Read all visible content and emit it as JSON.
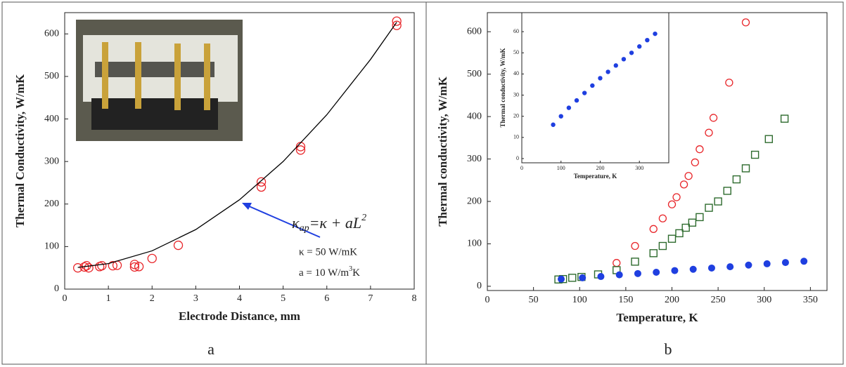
{
  "chart_data": [
    {
      "type": "scatter",
      "panel_label": "a",
      "x_label": "Electrode Distance, mm",
      "y_label": "Thermal Conductivity, W/mK",
      "xlim": [
        0,
        8
      ],
      "ylim": [
        0,
        650
      ],
      "xticks": [
        0,
        1,
        2,
        3,
        4,
        5,
        6,
        7,
        8
      ],
      "yticks": [
        0,
        100,
        200,
        300,
        400,
        500,
        600
      ],
      "annotations": {
        "formula": {
          "main": "κ",
          "sub": "ap",
          "rest": "=κ + aL",
          "sup": "2"
        },
        "kappa": "κ = 50 W/mK",
        "a": {
          "main": "a = 10 W/m",
          "sup": "3",
          "rest": "K"
        }
      },
      "series": [
        {
          "marker": "circle-open",
          "color": "#e8262a",
          "x": [
            0.3,
            0.45,
            0.5,
            0.55,
            0.8,
            0.85,
            1.1,
            1.2,
            1.6,
            1.6,
            1.7,
            2.0,
            2.6,
            4.5,
            4.5,
            5.4,
            5.4,
            7.6,
            7.6
          ],
          "values": [
            50,
            52,
            55,
            50,
            53,
            55,
            55,
            56,
            52,
            58,
            53,
            72,
            103,
            240,
            252,
            327,
            335,
            620,
            630
          ]
        },
        {
          "marker": "line",
          "color": "#000000",
          "x": [
            0.3,
            1,
            2,
            3,
            4,
            5,
            6,
            7,
            7.6
          ],
          "values": [
            50.9,
            60,
            90,
            140,
            210,
            300,
            410,
            540,
            627.6
          ]
        }
      ]
    },
    {
      "type": "scatter",
      "panel_label": "b",
      "x_label": "Temperature, K",
      "y_label": "Thermal conductivity, W/mK",
      "xlim": [
        0,
        368
      ],
      "ylim": [
        -10,
        645
      ],
      "xticks": [
        0,
        50,
        100,
        150,
        200,
        250,
        300,
        350
      ],
      "yticks": [
        0,
        100,
        200,
        300,
        400,
        500,
        600
      ],
      "series": [
        {
          "marker": "circle-open",
          "color": "#e8262a",
          "x": [
            140,
            160,
            180,
            190,
            200,
            205,
            213,
            218,
            225,
            230,
            240,
            245,
            262,
            280
          ],
          "values": [
            55,
            95,
            135,
            160,
            193,
            210,
            240,
            260,
            292,
            323,
            362,
            397,
            480,
            622
          ]
        },
        {
          "marker": "square-open",
          "color": "#2e6b2e",
          "x": [
            77,
            82,
            92,
            102,
            120,
            140,
            160,
            180,
            190,
            200,
            208,
            215,
            222,
            230,
            240,
            250,
            260,
            270,
            280,
            290,
            305,
            322
          ],
          "values": [
            16,
            17,
            20,
            22,
            28,
            38,
            58,
            78,
            95,
            112,
            125,
            138,
            150,
            163,
            185,
            200,
            225,
            252,
            278,
            310,
            347,
            395
          ]
        },
        {
          "marker": "circle-filled",
          "color": "#1f3fe0",
          "x": [
            80,
            103,
            123,
            143,
            163,
            183,
            203,
            223,
            243,
            263,
            283,
            303,
            323,
            343
          ],
          "values": [
            17,
            20,
            23,
            27,
            30,
            33,
            37,
            40,
            43,
            46,
            50,
            53,
            56,
            59
          ]
        }
      ]
    },
    {
      "type": "scatter",
      "x_label": "Temperature, K",
      "y_label": "Thermal conductivity, W/mK",
      "xlim": [
        0,
        375
      ],
      "ylim": [
        -2,
        69
      ],
      "xticks": [
        0,
        100,
        200,
        300
      ],
      "yticks": [
        0,
        10,
        20,
        30,
        40,
        50,
        60
      ],
      "series": [
        {
          "marker": "circle-filled",
          "color": "#1f3fe0",
          "x": [
            80,
            100,
            120,
            140,
            160,
            180,
            200,
            220,
            240,
            260,
            280,
            300,
            320,
            340
          ],
          "values": [
            16,
            20,
            24,
            27.5,
            31,
            34.5,
            38,
            41,
            44,
            47,
            50,
            53,
            56,
            59
          ]
        }
      ]
    }
  ]
}
